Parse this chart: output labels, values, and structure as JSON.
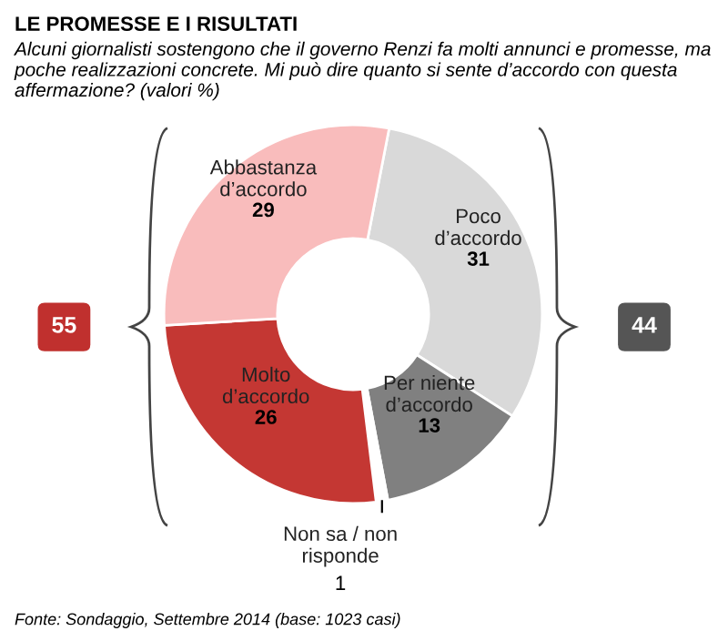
{
  "chart_data": {
    "type": "donut",
    "title": "LE PROMESSE E I RISULTATI",
    "subtitle": "Alcuni giornalisti sostengono che il governo Renzi fa molti annunci e promesse, ma poche realizzazioni concrete. Mi può dire quanto si sente d’accordo con questa affermazione? (valori %)",
    "categories": [
      "Poco d’accordo",
      "Per niente d’accordo",
      "Non sa / non risponde",
      "Molto d’accordo",
      "Abbastanza d’accordo"
    ],
    "values": [
      31,
      13,
      1,
      26,
      29
    ],
    "colors": [
      "#d9d9d9",
      "#808080",
      "#ffffff",
      "#c43733",
      "#f9bcbc"
    ],
    "data_labels": true,
    "annotations": [
      "55",
      "44",
      "Fonte: Sondaggio, Settembre 2014 (base: 1023 casi)"
    ]
  }
}
